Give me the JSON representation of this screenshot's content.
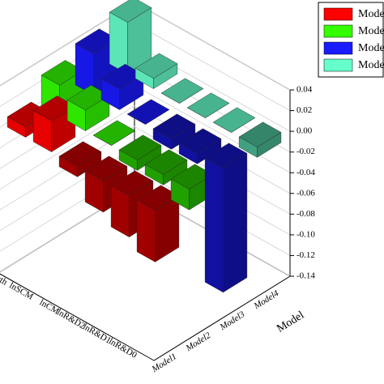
{
  "chart_data": {
    "type": "bar3d",
    "z_axis_title": "Model",
    "categories": [
      "lnR&D0",
      "lnR&D1",
      "lnR&D2",
      "lnCM",
      "lnSCM",
      "owth"
    ],
    "models": [
      "Model1",
      "Model2",
      "Model3",
      "Model4"
    ],
    "series": [
      {
        "name": "Mode",
        "color": "#ff0000",
        "values": [
          -0.05,
          -0.04,
          -0.03,
          -0.01,
          0.03,
          0.01
        ]
      },
      {
        "name": "Mode",
        "color": "#33ff00",
        "values": [
          -0.02,
          -0.01,
          -0.01,
          0.0,
          0.02,
          0.03
        ]
      },
      {
        "name": "Mode",
        "color": "#1a1aff",
        "values": [
          -0.12,
          -0.01,
          -0.01,
          0.0,
          0.02,
          0.04
        ]
      },
      {
        "name": "Mode",
        "color": "#66ffcc",
        "values": [
          -0.01,
          0.0,
          0.0,
          0.0,
          0.01,
          0.05
        ]
      }
    ],
    "zlim": [
      -0.14,
      0.04
    ],
    "zticks": [
      0.04,
      0.02,
      {
        "value": 0,
        "label": "0.00"
      },
      -0.02,
      -0.04,
      -0.06,
      -0.08,
      {
        "value": -0.1,
        "label": "-0.10"
      },
      -0.12,
      -0.14
    ],
    "grid": true
  }
}
